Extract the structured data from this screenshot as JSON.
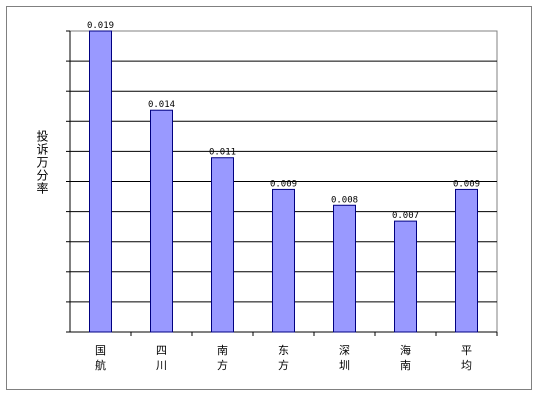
{
  "chart_data": {
    "type": "bar",
    "title": "",
    "xlabel": "",
    "ylabel": "投诉万分率",
    "categories": [
      "国航",
      "四川",
      "南方",
      "东方",
      "深圳",
      "海南",
      "平均"
    ],
    "value_labels": [
      "0.019",
      "0.014",
      "0.011",
      "0.009",
      "0.008",
      "0.007",
      "0.009"
    ],
    "values": [
      0.019,
      0.014,
      0.011,
      0.009,
      0.008,
      0.007,
      0.009
    ],
    "ylim": [
      0,
      0.019
    ],
    "gridlines": 10,
    "grid": true,
    "legend": "none",
    "colors": {
      "bar": "#9999ff",
      "bar_edge": "#000080",
      "plot_bg": "#ffffff",
      "grid": "#000000"
    }
  }
}
